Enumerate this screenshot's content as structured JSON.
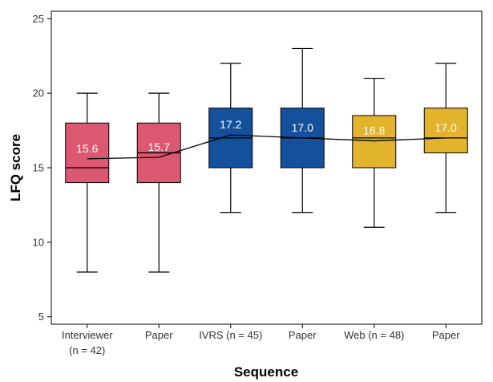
{
  "chart_data": {
    "type": "box",
    "xlabel": "Sequence",
    "ylabel": "LFQ score",
    "ylim": [
      4.5,
      25.5
    ],
    "yticks": [
      5,
      10,
      15,
      20,
      25
    ],
    "grid": false,
    "categories": [
      {
        "label": [
          "Interviewer",
          "(n = 42)"
        ],
        "min": 8,
        "q1": 14,
        "median": 15,
        "q3": 18,
        "max": 20,
        "mean": 15.6,
        "mean_label": "15.6",
        "color": "#dc5870"
      },
      {
        "label": [
          "Paper"
        ],
        "min": 8,
        "q1": 14,
        "median": 16,
        "q3": 18,
        "max": 20,
        "mean": 15.7,
        "mean_label": "15.7",
        "color": "#dc5870"
      },
      {
        "label": [
          "IVRS (n = 45)"
        ],
        "min": 12,
        "q1": 15,
        "median": 17,
        "q3": 19,
        "max": 22,
        "mean": 17.2,
        "mean_label": "17.2",
        "color": "#14509b"
      },
      {
        "label": [
          "Paper"
        ],
        "min": 12,
        "q1": 15,
        "median": 17,
        "q3": 19,
        "max": 23,
        "mean": 17.0,
        "mean_label": "17.0",
        "color": "#14509b"
      },
      {
        "label": [
          "Web (n = 48)"
        ],
        "min": 11,
        "q1": 15,
        "median": 17,
        "q3": 18.5,
        "max": 21,
        "mean": 16.8,
        "mean_label": "16.8",
        "color": "#e2b32c"
      },
      {
        "label": [
          "Paper"
        ],
        "min": 12,
        "q1": 16,
        "median": 17,
        "q3": 19,
        "max": 22,
        "mean": 17.0,
        "mean_label": "17.0",
        "color": "#e2b32c"
      }
    ]
  }
}
